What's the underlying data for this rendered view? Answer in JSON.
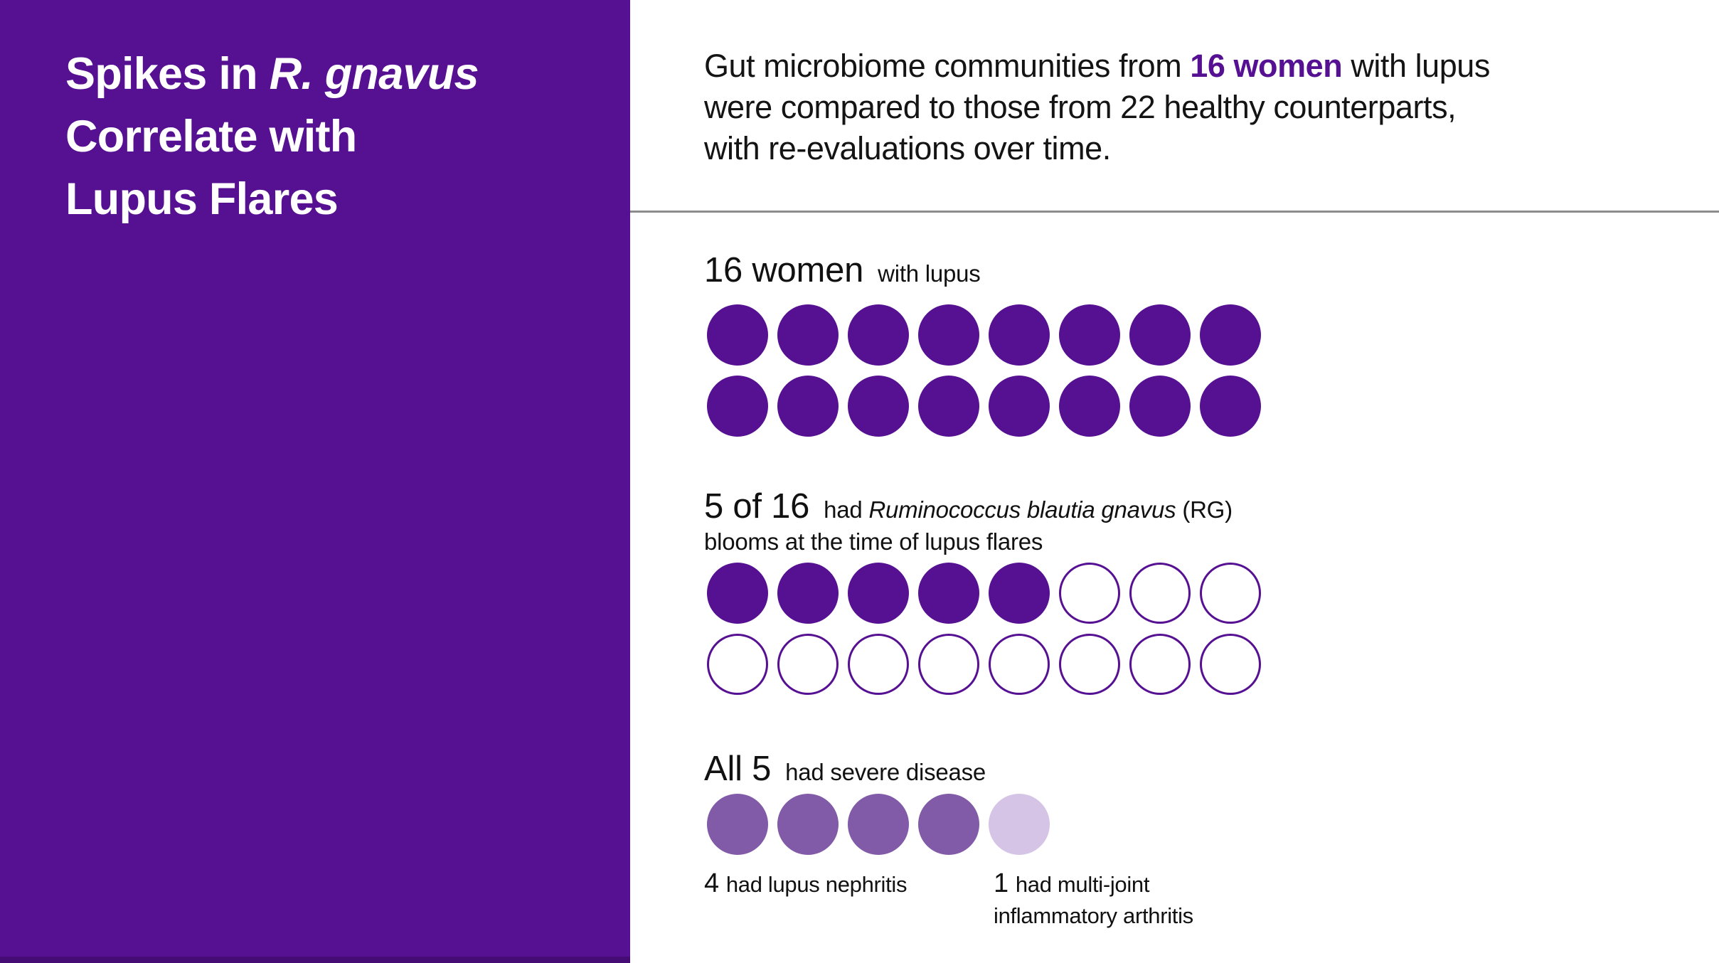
{
  "colors": {
    "brand_purple": "#561092",
    "medium_purple": "#815aa8",
    "light_purple": "#d5c4e6",
    "divider_grey": "#8c8c8c",
    "panel_bottom_edge": "#450c76",
    "text_black": "#111111",
    "white": "#ffffff"
  },
  "panel": {
    "title": {
      "line1_pre": "Spikes in ",
      "line1_italic": "R. gnavus",
      "line2": "Correlate with",
      "line3": "Lupus Flares"
    }
  },
  "intro": {
    "line1_pre": "Gut microbiome communities from ",
    "line1_highlight": "16 women",
    "line1_post": " with lupus",
    "line2": "were compared to those from 22 healthy counterparts,",
    "line3": "with re-evaluations over time."
  },
  "sections": [
    {
      "big": "16 women",
      "small": "with lupus",
      "dot_rows": [
        [
          "filled",
          "filled",
          "filled",
          "filled",
          "filled",
          "filled",
          "filled",
          "filled"
        ],
        [
          "filled",
          "filled",
          "filled",
          "filled",
          "filled",
          "filled",
          "filled",
          "filled"
        ]
      ]
    },
    {
      "big": "5 of 16",
      "small_pre": "had ",
      "small_italic": "Ruminococcus blautia gnavus",
      "small_post": " (RG)",
      "small_line2": "blooms at the time of lupus flares",
      "dot_rows": [
        [
          "filled",
          "filled",
          "filled",
          "filled",
          "filled",
          "outline",
          "outline",
          "outline"
        ],
        [
          "outline",
          "outline",
          "outline",
          "outline",
          "outline",
          "outline",
          "outline",
          "outline"
        ]
      ]
    },
    {
      "big": "All 5",
      "small": "had severe disease",
      "dot_rows": [
        [
          "medium",
          "medium",
          "medium",
          "medium",
          "light"
        ]
      ],
      "captions": [
        {
          "num": "4",
          "text": "had lupus nephritis"
        },
        {
          "num": "1",
          "text": "had multi-joint inflammatory arthritis"
        }
      ]
    }
  ],
  "chart_data": [
    {
      "type": "icon_array",
      "title": "16 women with lupus",
      "total": 16,
      "filled": 16,
      "rows": 2,
      "columns": 8,
      "fill_color": "#561092"
    },
    {
      "type": "icon_array",
      "title": "5 of 16 had Ruminococcus blautia gnavus (RG) blooms at the time of lupus flares",
      "total": 16,
      "filled": 5,
      "rows": 2,
      "columns": 8,
      "fill_color": "#561092",
      "empty_style": "outlined"
    },
    {
      "type": "icon_array",
      "title": "All 5 had severe disease",
      "total": 5,
      "rows": 1,
      "columns": 5,
      "groups": [
        {
          "label": "4 had lupus nephritis",
          "count": 4,
          "color": "#815aa8"
        },
        {
          "label": "1 had multi-joint inflammatory arthritis",
          "count": 1,
          "color": "#d5c4e6"
        }
      ]
    }
  ]
}
